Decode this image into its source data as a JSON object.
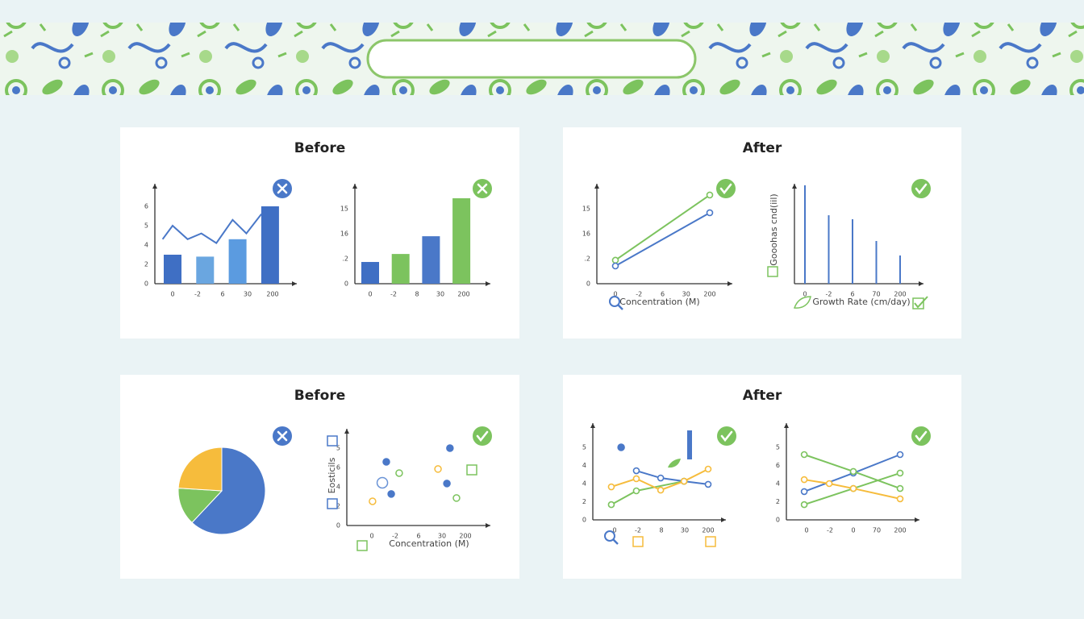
{
  "panels": [
    {
      "title": "Before",
      "charts": [
        {
          "type": "cartesian",
          "xlabels": [
            "0",
            "-2",
            "6",
            "30",
            "200"
          ],
          "ylabels": [
            "0",
            "2",
            "4",
            "5",
            "6"
          ],
          "series": [
            {
              "kind": "bar",
              "x": [
                0,
                1.3,
                2.6,
                3.9
              ],
              "values": [
                1.5,
                1.4,
                2.3,
                4.0
              ],
              "colors": [
                "#3f6fc4",
                "#6aa6e0",
                "#5b9be0",
                "#3f6fc4"
              ]
            },
            {
              "kind": "line",
              "color": "#4a78c8",
              "markers": false,
              "x": [
                -0.4,
                0,
                0.6,
                1.15,
                1.75,
                2.4,
                2.95,
                3.55
              ],
              "values": [
                2.3,
                3.0,
                2.3,
                2.6,
                2.1,
                3.3,
                2.6,
                3.6
              ]
            }
          ]
        },
        {
          "type": "cartesian",
          "xlabels": [
            "0",
            "-2",
            "8",
            "30",
            "200"
          ],
          "ylabels": [
            "0",
            ".2",
            "16",
            "15"
          ],
          "series": [
            {
              "kind": "bar",
              "x": [
                0,
                1.3,
                2.6,
                3.9
              ],
              "values": [
                0.87,
                1.19,
                1.9,
                3.42
              ],
              "colors": [
                "#3f6fc4",
                "#7cc35e",
                "#4a78c8",
                "#7cc35e"
              ]
            }
          ]
        }
      ]
    },
    {
      "title": "After",
      "charts": [
        {
          "type": "cartesian",
          "xlabels": [
            "0",
            "-2",
            "6",
            "30",
            "200"
          ],
          "ylabels": [
            "0",
            ".2",
            "16",
            "15"
          ],
          "xlabel": "Concentration (M)",
          "series": [
            {
              "kind": "line",
              "color": "#7cc35e",
              "markers": true,
              "x": [
                0,
                4
              ],
              "values": [
                0.94,
                3.55
              ]
            },
            {
              "kind": "line",
              "color": "#4a78c8",
              "markers": true,
              "x": [
                0,
                4
              ],
              "values": [
                0.71,
                2.84
              ]
            }
          ]
        },
        {
          "type": "cartesian",
          "xlabels": [
            "0",
            "-2",
            "6",
            "70",
            "200"
          ],
          "ylabels": [],
          "xlabel": "Growth Rate (cm/day)",
          "ylabel": "Gooohas cnd(iil)",
          "series": [
            {
              "kind": "stem",
              "color": "#4a78c8",
              "x": [
                0,
                1,
                2,
                3,
                4
              ],
              "values": [
                3.94,
                2.74,
                2.58,
                1.71,
                1.13
              ]
            }
          ]
        }
      ]
    },
    {
      "title": "Before",
      "charts": [
        {
          "type": "pie",
          "values": [
            62,
            14,
            24
          ],
          "colors": [
            "#4a78c8",
            "#7cc35e",
            "#f6bc3c"
          ]
        },
        {
          "type": "cartesian",
          "xlabels": [
            "0",
            "-2",
            "6",
            "30",
            "200"
          ],
          "ylabels": [
            "0",
            "2",
            "4",
            "6",
            "5"
          ],
          "xlabel": "Concentration (M)",
          "ylabel": "Eosticils",
          "series": [
            {
              "kind": "scatter",
              "color": "#4a78c8",
              "filled": true,
              "x": [
                0.62,
                0.83,
                3.34,
                3.21
              ],
              "values": [
                3.29,
                1.63,
                4.0,
                2.17
              ]
            },
            {
              "kind": "scatter",
              "color": "#7cc35e",
              "filled": false,
              "x": [
                1.17,
                3.62
              ],
              "values": [
                2.71,
                1.42
              ]
            },
            {
              "kind": "scatter",
              "color": "#f6bc3c",
              "filled": false,
              "x": [
                0.03,
                2.83
              ],
              "values": [
                1.25,
                2.92
              ]
            },
            {
              "kind": "scatter",
              "color": "#6a93d6",
              "filled": false,
              "x": [
                0.45
              ],
              "values": [
                2.21
              ]
            }
          ]
        }
      ]
    },
    {
      "title": "After",
      "charts": [
        {
          "type": "cartesian",
          "xlabels": [
            "0",
            "-2",
            "8",
            "30",
            "200"
          ],
          "ylabels": [
            "0",
            "2",
            "4",
            "4",
            "5"
          ],
          "series": [
            {
              "kind": "line",
              "color": "#4a78c8",
              "markers": true,
              "x": [
                0.93,
                1.97,
                2.97,
                4.0
              ],
              "values": [
                2.71,
                2.31,
                2.13,
                1.96
              ]
            },
            {
              "kind": "line",
              "color": "#7cc35e",
              "markers": true,
              "x": [
                -0.14,
                0.93,
                2.97
              ],
              "values": [
                0.84,
                1.6,
                2.13
              ]
            },
            {
              "kind": "line",
              "color": "#f6bc3c",
              "markers": true,
              "x": [
                -0.14,
                0.93,
                1.97,
                2.97,
                4.0
              ],
              "values": [
                1.82,
                2.27,
                1.64,
                2.13,
                2.8
              ]
            },
            {
              "kind": "scatter",
              "color": "#4a78c8",
              "filled": true,
              "x": [
                0.28
              ],
              "values": [
                4.0
              ]
            }
          ]
        },
        {
          "type": "cartesian",
          "xlabels": [
            "0",
            "-2",
            "0",
            "70",
            "200"
          ],
          "ylabels": [
            "0",
            "2",
            "4",
            "6",
            "5"
          ],
          "series": [
            {
              "kind": "line",
              "color": "#4a78c8",
              "markers": true,
              "x": [
                -0.1,
                2.0,
                4.0
              ],
              "values": [
                1.56,
                2.58,
                3.6
              ]
            },
            {
              "kind": "line",
              "color": "#7cc35e",
              "markers": true,
              "x": [
                -0.1,
                2.0,
                4.0
              ],
              "values": [
                3.6,
                2.67,
                1.73
              ]
            },
            {
              "kind": "line",
              "color": "#7cc35e",
              "markers": true,
              "x": [
                -0.1,
                2.0,
                4.0
              ],
              "values": [
                0.84,
                1.73,
                2.58
              ]
            },
            {
              "kind": "line",
              "color": "#f6bc3c",
              "markers": true,
              "x": [
                -0.1,
                0.97,
                2.0,
                4.0
              ],
              "values": [
                2.22,
                2.0,
                1.73,
                1.16
              ]
            }
          ]
        }
      ]
    }
  ]
}
